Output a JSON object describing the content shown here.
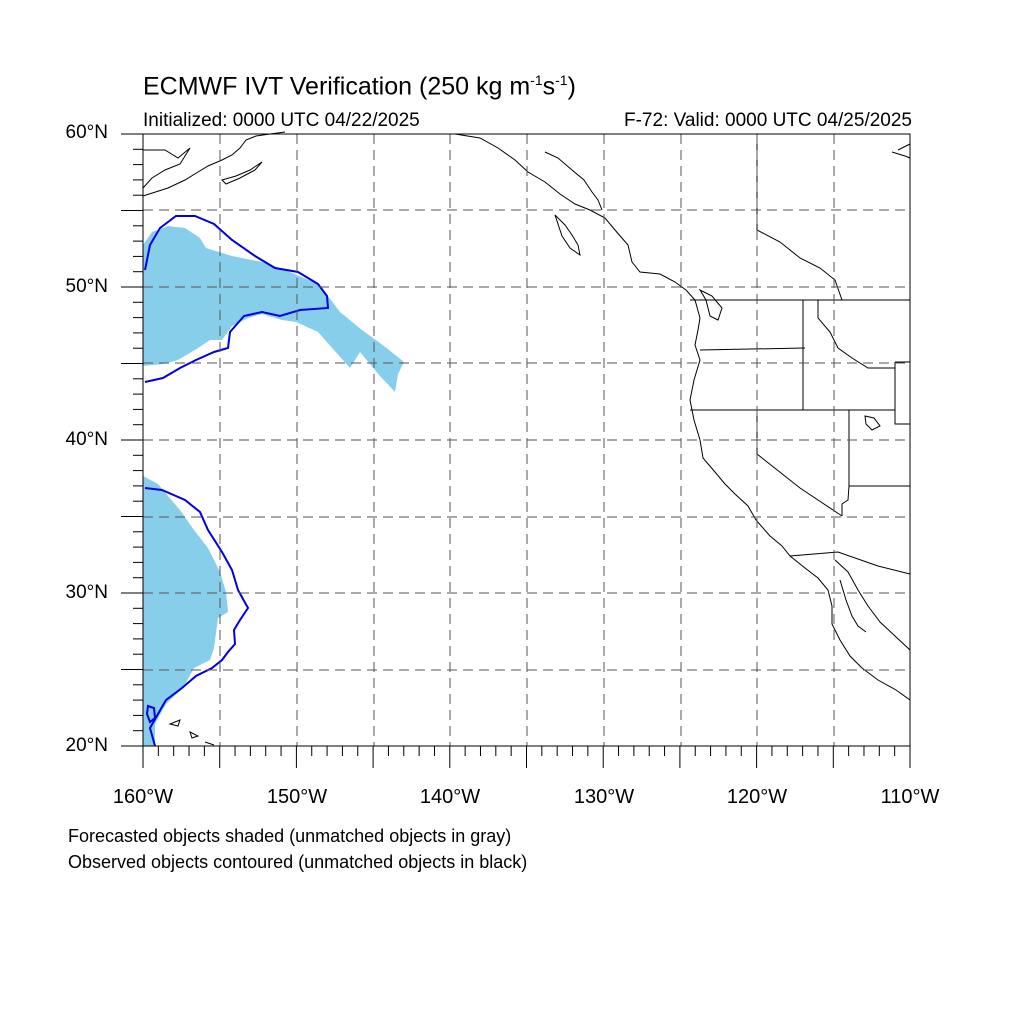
{
  "title": {
    "main": "ECMWF IVT Verification (250 kg m",
    "exp1": "-1",
    "mid": "s",
    "exp2": "-1",
    "close": ")"
  },
  "initialized": "Initialized: 0000 UTC 04/22/2025",
  "valid": "F-72: Valid: 0000 UTC 04/25/2025",
  "axes": {
    "lat_labels": [
      "60°N",
      "50°N",
      "40°N",
      "30°N",
      "20°N"
    ],
    "lon_labels": [
      "160°W",
      "150°W",
      "140°W",
      "130°W",
      "120°W",
      "110°W"
    ],
    "lon_range": [
      -160,
      -110
    ],
    "lat_range": [
      20,
      60
    ],
    "grid": "dashed, every 5 degrees"
  },
  "legend": {
    "line1": "Forecasted objects shaded (unmatched objects in gray)",
    "line2": "Observed objects contoured (unmatched objects in black)"
  },
  "colors": {
    "forecast_fill": "#87ceeb",
    "observed_contour": "#0000e0",
    "coastline": "#000000",
    "grid": "#555555"
  }
}
